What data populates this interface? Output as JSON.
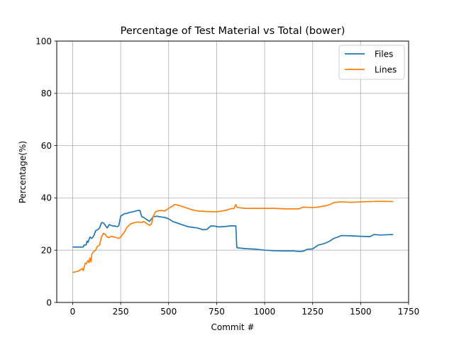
{
  "chart_data": {
    "type": "line",
    "title": "Percentage of Test Material vs Total (bower)",
    "xlabel": "Commit #",
    "ylabel": "Percentage(%)",
    "xlim": [
      -83,
      1750
    ],
    "ylim": [
      0,
      100
    ],
    "xticks": [
      0,
      250,
      500,
      750,
      1000,
      1250,
      1500,
      1750
    ],
    "yticks": [
      0,
      20,
      40,
      60,
      80,
      100
    ],
    "grid": true,
    "legend_position": "top-right",
    "colors": {
      "Files": "#1f77b4",
      "Lines": "#ff7f0e"
    },
    "series": [
      {
        "name": "Files",
        "x": [
          0,
          20,
          55,
          60,
          70,
          75,
          80,
          90,
          100,
          110,
          120,
          130,
          140,
          150,
          160,
          165,
          170,
          180,
          190,
          200,
          210,
          220,
          230,
          240,
          250,
          260,
          270,
          280,
          290,
          300,
          320,
          340,
          350,
          360,
          370,
          380,
          390,
          400,
          420,
          440,
          460,
          480,
          500,
          520,
          540,
          560,
          580,
          600,
          620,
          650,
          680,
          700,
          720,
          740,
          760,
          780,
          800,
          820,
          850,
          855,
          870,
          900,
          950,
          1000,
          1050,
          1100,
          1150,
          1180,
          1200,
          1220,
          1250,
          1260,
          1280,
          1300,
          1320,
          1340,
          1360,
          1380,
          1400,
          1450,
          1500,
          1550,
          1570,
          1600,
          1670
        ],
        "y": [
          21.2,
          21.2,
          21.2,
          22.0,
          22.0,
          23.5,
          23.0,
          25.0,
          24.5,
          25.5,
          27.5,
          27.8,
          28.5,
          30.5,
          30.5,
          30.0,
          29.5,
          28.5,
          29.8,
          29.5,
          29.2,
          29.3,
          29.0,
          29.3,
          33.0,
          33.5,
          34.0,
          34.0,
          34.3,
          34.5,
          34.8,
          35.2,
          35.2,
          32.8,
          32.5,
          32.0,
          31.5,
          31.0,
          32.8,
          33.0,
          32.7,
          32.5,
          32.0,
          31.0,
          30.5,
          30.0,
          29.5,
          29.0,
          28.8,
          28.5,
          27.8,
          28.0,
          29.3,
          29.2,
          28.9,
          29.0,
          29.1,
          29.3,
          29.3,
          21.0,
          20.8,
          20.6,
          20.4,
          20.0,
          19.8,
          19.7,
          19.7,
          19.5,
          19.6,
          20.3,
          20.5,
          21.0,
          22.0,
          22.3,
          22.8,
          23.5,
          24.5,
          25.0,
          25.6,
          25.5,
          25.3,
          25.2,
          26.0,
          25.8,
          26.0
        ]
      },
      {
        "name": "Lines",
        "x": [
          0,
          20,
          30,
          40,
          50,
          55,
          60,
          65,
          70,
          75,
          80,
          85,
          90,
          95,
          100,
          110,
          120,
          125,
          130,
          140,
          150,
          160,
          170,
          180,
          190,
          200,
          220,
          240,
          250,
          260,
          270,
          280,
          300,
          320,
          340,
          360,
          370,
          380,
          400,
          410,
          420,
          430,
          440,
          460,
          480,
          500,
          510,
          520,
          530,
          550,
          580,
          600,
          620,
          650,
          700,
          750,
          780,
          800,
          820,
          840,
          850,
          855,
          870,
          900,
          950,
          1000,
          1050,
          1100,
          1150,
          1180,
          1200,
          1250,
          1280,
          1300,
          1320,
          1340,
          1350,
          1360,
          1380,
          1400,
          1450,
          1500,
          1550,
          1600,
          1670
        ],
        "y": [
          11.5,
          11.8,
          12.0,
          12.5,
          13.0,
          12.2,
          13.5,
          15.0,
          14.8,
          15.5,
          16.0,
          15.2,
          17.0,
          15.5,
          18.5,
          19.5,
          20.0,
          21.0,
          21.5,
          22.0,
          25.0,
          26.5,
          26.0,
          25.0,
          24.8,
          25.3,
          25.0,
          24.5,
          25.0,
          26.0,
          27.0,
          28.5,
          30.0,
          30.5,
          30.8,
          30.6,
          31.0,
          30.5,
          29.5,
          30.0,
          33.0,
          34.5,
          35.0,
          35.2,
          35.0,
          36.0,
          36.5,
          36.8,
          37.5,
          37.2,
          36.5,
          36.0,
          35.5,
          35.0,
          34.8,
          34.7,
          35.0,
          35.3,
          35.8,
          36.0,
          37.5,
          36.5,
          36.2,
          36.0,
          36.0,
          36.0,
          36.0,
          35.8,
          35.8,
          35.8,
          36.5,
          36.3,
          36.5,
          36.8,
          37.0,
          37.5,
          37.8,
          38.2,
          38.4,
          38.5,
          38.3,
          38.5,
          38.6,
          38.7,
          38.6
        ]
      }
    ]
  }
}
